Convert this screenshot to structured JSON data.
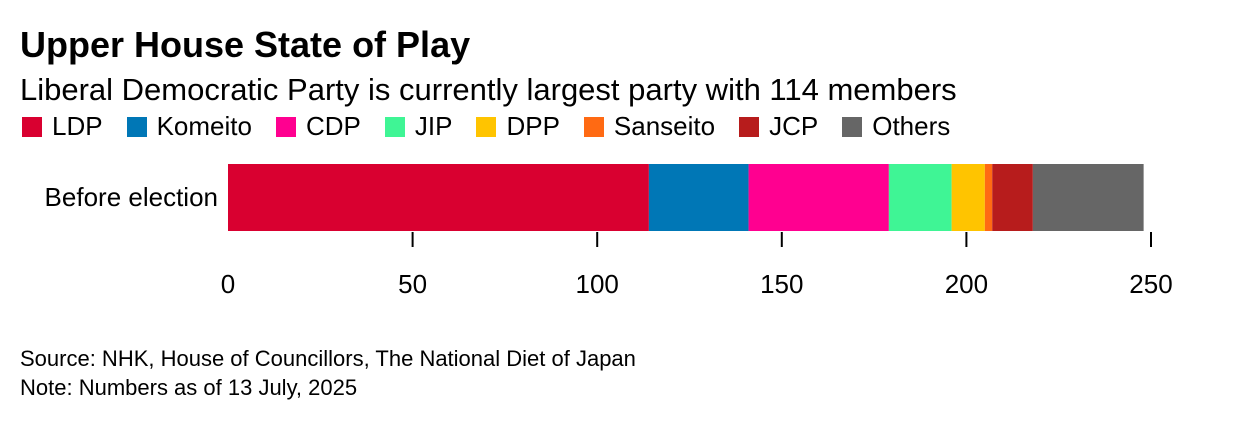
{
  "title": "Upper House State of Play",
  "subtitle": "Liberal Democratic Party is currently largest party with 114 members",
  "legend": [
    {
      "label": "LDP",
      "color": "#d90030"
    },
    {
      "label": "Komeito",
      "color": "#0077b6"
    },
    {
      "label": "CDP",
      "color": "#ff0090"
    },
    {
      "label": "JIP",
      "color": "#3ff595"
    },
    {
      "label": "DPP",
      "color": "#ffc400"
    },
    {
      "label": "Sanseito",
      "color": "#ff6a13"
    },
    {
      "label": "JCP",
      "color": "#b71c1c"
    },
    {
      "label": "Others",
      "color": "#666666"
    }
  ],
  "chart_data": {
    "type": "bar",
    "orientation": "horizontal",
    "stacked": true,
    "categories": [
      "Before election"
    ],
    "series": [
      {
        "name": "LDP",
        "values": [
          114
        ],
        "color": "#d90030"
      },
      {
        "name": "Komeito",
        "values": [
          27
        ],
        "color": "#0077b6"
      },
      {
        "name": "CDP",
        "values": [
          38
        ],
        "color": "#ff0090"
      },
      {
        "name": "JIP",
        "values": [
          17
        ],
        "color": "#3ff595"
      },
      {
        "name": "DPP",
        "values": [
          9
        ],
        "color": "#ffc400"
      },
      {
        "name": "Sanseito",
        "values": [
          2
        ],
        "color": "#ff6a13"
      },
      {
        "name": "JCP",
        "values": [
          11
        ],
        "color": "#b71c1c"
      },
      {
        "name": "Others",
        "values": [
          30
        ],
        "color": "#666666"
      }
    ],
    "xlim": [
      0,
      250
    ],
    "xticks": [
      0,
      50,
      100,
      150,
      200,
      250
    ],
    "xlabel": "",
    "ylabel": "",
    "grid": false
  },
  "notes": {
    "source": "Source: NHK, House of Councillors, The National Diet of Japan",
    "note": "Note: Numbers as of 13 July, 2025"
  }
}
